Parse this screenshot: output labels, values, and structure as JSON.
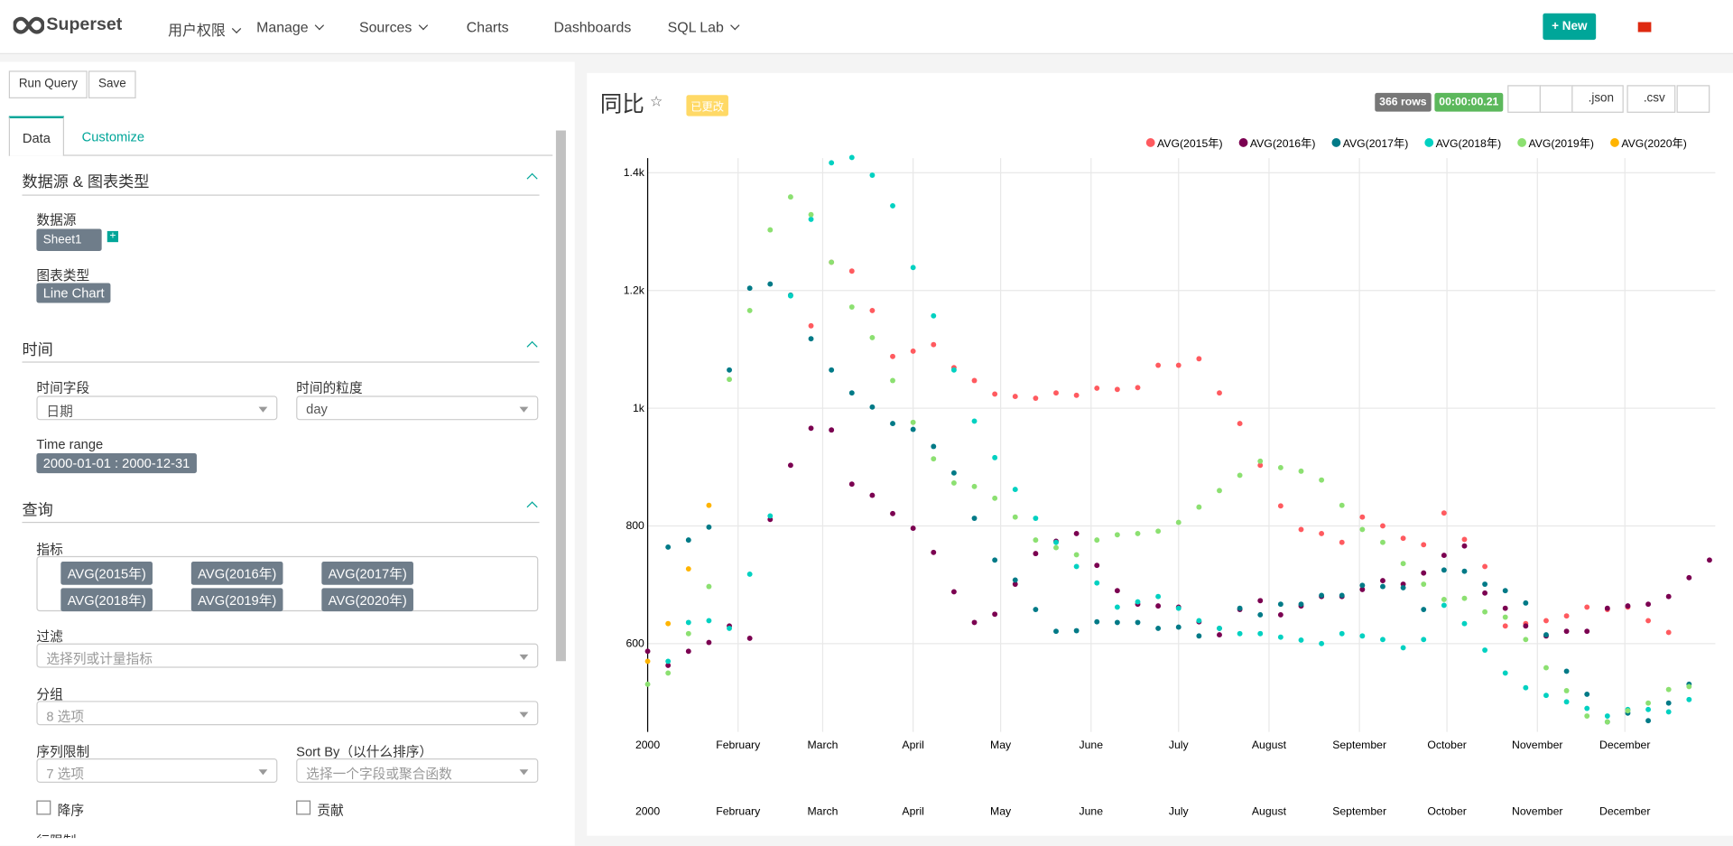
{
  "nav": {
    "brand": "Superset",
    "items": [
      "用户权限",
      "Manage",
      "Sources",
      "Charts",
      "Dashboards",
      "SQL Lab"
    ],
    "new": "New"
  },
  "panel": {
    "run_query": "Run Query",
    "save": "Save",
    "tab_data": "Data",
    "tab_customize": "Customize",
    "datasource_section": "数据源 & 图表类型",
    "datasource_label": "数据源",
    "datasource": "Sheet1",
    "viz_type_label": "图表类型",
    "viz_type": "Line Chart",
    "time_section": "时间",
    "time_column_label": "时间字段",
    "time_column": "日期",
    "time_grain_label": "时间的粒度",
    "time_grain": "day",
    "time_range_label": "Time range",
    "time_range": "2000-01-01 : 2000-12-31",
    "query_section": "查询",
    "metrics_label": "指标",
    "metrics": [
      "AVG(2015年)",
      "AVG(2016年)",
      "AVG(2017年)",
      "AVG(2018年)",
      "AVG(2019年)",
      "AVG(2020年)"
    ],
    "filter_label": "过滤",
    "filter_placeholder": "选择列或计量指标",
    "groupby_label": "分组",
    "groupby_placeholder": "8 选项",
    "series_limit_label": "序列限制",
    "series_limit_placeholder": "7 选项",
    "sort_by_label": "Sort By（以什么排序）",
    "sort_by_placeholder": "选择一个字段或聚合函数",
    "descending": "降序",
    "contribution": "贡献",
    "row_limit_label": "行限制"
  },
  "header": {
    "title": "同比",
    "altered": "已更改",
    "rows": "366 rows",
    "timer": "00:00:00.21",
    "json": ".json",
    "csv": ".csv"
  },
  "chart_data": {
    "type": "scatter",
    "grid": true,
    "legend": "top-right",
    "x": [
      0,
      7,
      14,
      21,
      28,
      35,
      42,
      49,
      56,
      63,
      70,
      77,
      84,
      91,
      98,
      105,
      112,
      119,
      126,
      133,
      140,
      147,
      154,
      161,
      168,
      175,
      182,
      189,
      196,
      203,
      210,
      217,
      224,
      231,
      238,
      245,
      252,
      259,
      266,
      273,
      280,
      287,
      294,
      301,
      308,
      315,
      322,
      329,
      336,
      343,
      350,
      357,
      364
    ],
    "xlim": [
      0,
      366
    ],
    "xticks": [
      {
        "value": 0,
        "label": "2000"
      },
      {
        "value": 31,
        "label": "February"
      },
      {
        "value": 60,
        "label": "March"
      },
      {
        "value": 91,
        "label": "April"
      },
      {
        "value": 121,
        "label": "May"
      },
      {
        "value": 152,
        "label": "June"
      },
      {
        "value": 182,
        "label": "July"
      },
      {
        "value": 213,
        "label": "August"
      },
      {
        "value": 244,
        "label": "September"
      },
      {
        "value": 274,
        "label": "October"
      },
      {
        "value": 305,
        "label": "November"
      },
      {
        "value": 335,
        "label": "December"
      }
    ],
    "ylim": [
      450,
      1425
    ],
    "yticks": [
      600,
      800,
      {
        "value": 1000,
        "label": "1k"
      },
      {
        "value": 1200,
        "label": "1.2k"
      },
      {
        "value": 1400,
        "label": "1.4k"
      }
    ],
    "series": [
      {
        "name": "AVG(2015年)",
        "color": "#ff5a5f",
        "values": [
          null,
          null,
          null,
          null,
          null,
          null,
          null,
          null,
          1140,
          1248,
          1233,
          1166,
          1088,
          1097,
          1108,
          1069,
          1047,
          1024,
          1020,
          1017,
          1026,
          1022,
          1034,
          1032,
          1035,
          1073,
          1073,
          1084,
          1026,
          974,
          903,
          834,
          794,
          787,
          772,
          815,
          800,
          779,
          768,
          822,
          777,
          731,
          630,
          634,
          639,
          647,
          662,
          658,
          662,
          639,
          619,
          null,
          null
        ]
      },
      {
        "name": "AVG(2016年)",
        "color": "#7b0051",
        "values": [
          587,
          563,
          587,
          602,
          630,
          609,
          811,
          903,
          966,
          963,
          871,
          852,
          821,
          796,
          755,
          688,
          636,
          650,
          701,
          753,
          774,
          787,
          733,
          690,
          667,
          664,
          662,
          637,
          615,
          658,
          673,
          649,
          664,
          680,
          680,
          692,
          707,
          701,
          720,
          750,
          766,
          686,
          660,
          630,
          613,
          621,
          621,
          660,
          664,
          667,
          680,
          712,
          742
        ]
      },
      {
        "name": "AVG(2017年)",
        "color": "#007a87",
        "values": [
          null,
          764,
          776,
          798,
          1065,
          1204,
          1211,
          1192,
          1118,
          1065,
          1026,
          1002,
          974,
          964,
          935,
          890,
          813,
          742,
          708,
          658,
          621,
          622,
          637,
          636,
          636,
          626,
          628,
          613,
          626,
          660,
          649,
          667,
          667,
          682,
          682,
          699,
          697,
          695,
          658,
          725,
          723,
          701,
          690,
          669,
          615,
          553,
          514,
          467,
          482,
          469,
          499,
          531,
          null
        ]
      },
      {
        "name": "AVG(2018年)",
        "color": "#00d1c1",
        "values": [
          null,
          570,
          636,
          639,
          626,
          718,
          817,
          1191,
          1321,
          1417,
          1426,
          1396,
          1344,
          1239,
          1157,
          1065,
          978,
          916,
          862,
          813,
          772,
          731,
          703,
          662,
          671,
          680,
          660,
          639,
          626,
          617,
          617,
          611,
          606,
          600,
          617,
          613,
          607,
          593,
          607,
          665,
          634,
          589,
          550,
          525,
          512,
          501,
          490,
          477,
          488,
          488,
          484,
          505,
          null
        ]
      },
      {
        "name": "AVG(2019年)",
        "color": "#8ce071",
        "values": [
          531,
          550,
          617,
          697,
          1049,
          1166,
          1303,
          1359,
          1329,
          1248,
          1172,
          1120,
          1047,
          976,
          914,
          873,
          867,
          847,
          815,
          776,
          763,
          751,
          776,
          785,
          787,
          791,
          806,
          832,
          860,
          886,
          910,
          899,
          893,
          878,
          835,
          794,
          772,
          736,
          701,
          675,
          677,
          654,
          645,
          607,
          559,
          520,
          477,
          467,
          486,
          499,
          522,
          527,
          null
        ]
      },
      {
        "name": "AVG(2020年)",
        "color": "#ffb400",
        "values": [
          570,
          634,
          727,
          835,
          null,
          null,
          null,
          null,
          null,
          null,
          null,
          null,
          null,
          null,
          null,
          null,
          null,
          null,
          null,
          null,
          null,
          null,
          null,
          null,
          null,
          null,
          null,
          null,
          null,
          null,
          null,
          null,
          null,
          null,
          null,
          null,
          null,
          null,
          null,
          null,
          null,
          null,
          null,
          null,
          null,
          null,
          null,
          null,
          null,
          null,
          null,
          null,
          null
        ]
      }
    ]
  }
}
